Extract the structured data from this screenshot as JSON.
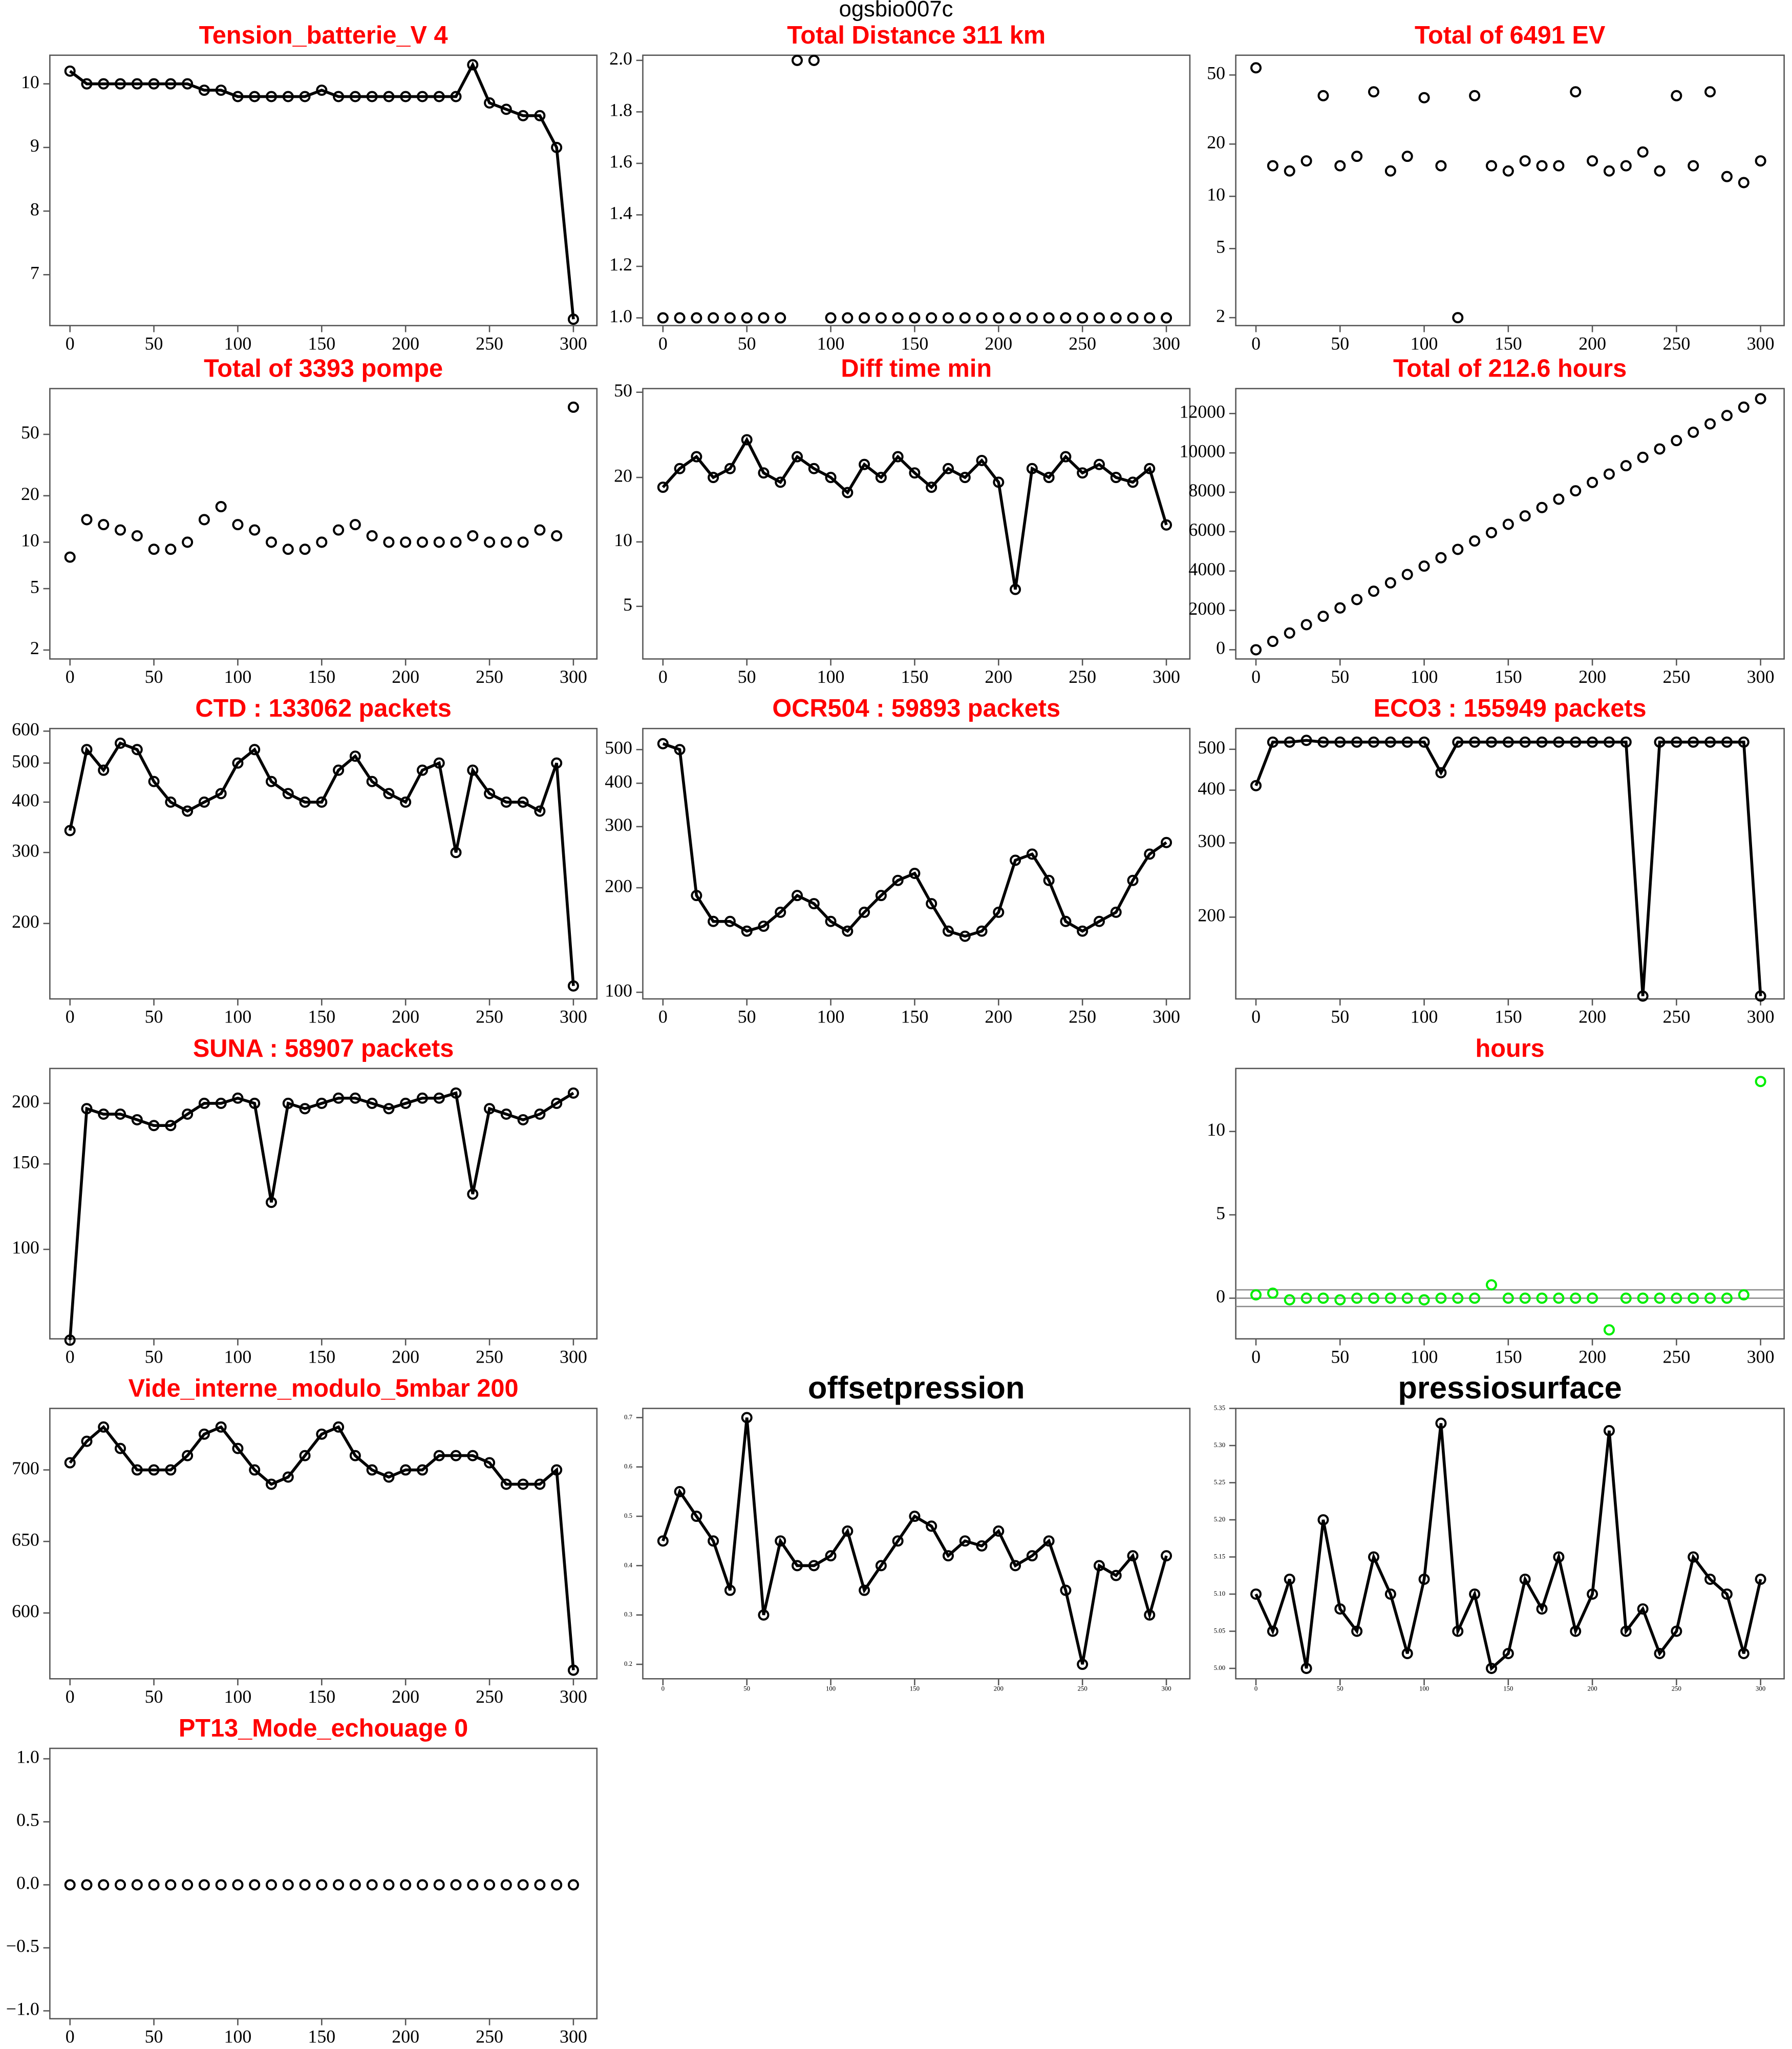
{
  "title": "ogsbio007c",
  "chart_data": [
    {
      "type": "line",
      "title": "Tension_batterie_V 4",
      "title_color": "#ff0000",
      "color": "#000000",
      "x": [
        0,
        10,
        20,
        30,
        40,
        50,
        60,
        70,
        80,
        90,
        100,
        110,
        120,
        130,
        140,
        150,
        160,
        170,
        180,
        190,
        200,
        210,
        220,
        230,
        240,
        250,
        260,
        270,
        280,
        290,
        300
      ],
      "values": [
        10.2,
        10.0,
        10.0,
        10.0,
        10.0,
        10.0,
        10.0,
        10.0,
        9.9,
        9.9,
        9.8,
        9.8,
        9.8,
        9.8,
        9.8,
        9.9,
        9.8,
        9.8,
        9.8,
        9.8,
        9.8,
        9.8,
        9.8,
        9.8,
        10.3,
        9.7,
        9.6,
        9.5,
        9.5,
        9.0,
        6.3
      ],
      "xlim": [
        -12,
        314
      ],
      "xticks": [
        0,
        50,
        100,
        150,
        200,
        250,
        300
      ],
      "ylim": [
        6.2,
        10.45
      ],
      "yticks": [
        7,
        8,
        9,
        10
      ],
      "log_y": false
    },
    {
      "type": "scatter",
      "title": "Total Distance  311  km",
      "title_color": "#ff0000",
      "color": "#000000",
      "x": [
        0,
        10,
        20,
        30,
        40,
        50,
        60,
        70,
        80,
        90,
        100,
        110,
        120,
        130,
        140,
        150,
        160,
        170,
        180,
        190,
        200,
        210,
        220,
        230,
        240,
        250,
        260,
        270,
        280,
        290,
        300
      ],
      "values": [
        1,
        1,
        1,
        1,
        1,
        1,
        1,
        1,
        2,
        2,
        1,
        1,
        1,
        1,
        1,
        1,
        1,
        1,
        1,
        1,
        1,
        1,
        1,
        1,
        1,
        1,
        1,
        1,
        1,
        1,
        1
      ],
      "xlim": [
        -12,
        314
      ],
      "xticks": [
        0,
        50,
        100,
        150,
        200,
        250,
        300
      ],
      "ylim": [
        0.97,
        2.02
      ],
      "yticks": [
        {
          "value": 1,
          "label": "1.0"
        },
        1.2,
        1.4,
        1.6,
        1.8,
        {
          "value": 2,
          "label": "2.0"
        }
      ],
      "log_y": false
    },
    {
      "type": "scatter",
      "title": "Total of  6491  EV",
      "title_color": "#ff0000",
      "color": "#000000",
      "x": [
        0,
        10,
        20,
        30,
        40,
        50,
        60,
        70,
        80,
        90,
        100,
        110,
        120,
        130,
        140,
        150,
        160,
        170,
        180,
        190,
        200,
        210,
        220,
        230,
        240,
        250,
        260,
        270,
        280,
        290,
        300
      ],
      "values": [
        55,
        15,
        14,
        16,
        38,
        15,
        17,
        40,
        14,
        17,
        37,
        15,
        2,
        38,
        15,
        14,
        16,
        15,
        15,
        40,
        16,
        14,
        15,
        18,
        14,
        38,
        15,
        40,
        13,
        12,
        16
      ],
      "xlim": [
        -12,
        314
      ],
      "xticks": [
        0,
        50,
        100,
        150,
        200,
        250,
        300
      ],
      "ylim": [
        1.8,
        65
      ],
      "yticks": [
        2,
        5,
        10,
        20,
        50
      ],
      "log_y": true
    },
    {
      "type": "scatter",
      "title": "Total of  3393  pompe",
      "title_color": "#ff0000",
      "color": "#000000",
      "x": [
        0,
        10,
        20,
        30,
        40,
        50,
        60,
        70,
        80,
        90,
        100,
        110,
        120,
        130,
        140,
        150,
        160,
        170,
        180,
        190,
        200,
        210,
        220,
        230,
        240,
        250,
        260,
        270,
        280,
        290,
        300
      ],
      "values": [
        8,
        14,
        13,
        12,
        11,
        9,
        9,
        10,
        14,
        17,
        13,
        12,
        10,
        9,
        9,
        10,
        12,
        13,
        11,
        10,
        10,
        10,
        10,
        10,
        11,
        10,
        10,
        10,
        12,
        11,
        75
      ],
      "xlim": [
        -12,
        314
      ],
      "xticks": [
        0,
        50,
        100,
        150,
        200,
        250,
        300
      ],
      "ylim": [
        1.75,
        99
      ],
      "yticks": [
        2,
        5,
        10,
        20,
        50
      ],
      "log_y": true
    },
    {
      "type": "line",
      "title": "Diff time min",
      "title_color": "#ff0000",
      "color": "#000000",
      "x": [
        0,
        10,
        20,
        30,
        40,
        50,
        60,
        70,
        80,
        90,
        100,
        110,
        120,
        130,
        140,
        150,
        160,
        170,
        180,
        190,
        200,
        210,
        220,
        230,
        240,
        250,
        260,
        270,
        280,
        290,
        300
      ],
      "values": [
        18,
        22,
        25,
        20,
        22,
        30,
        21,
        19,
        25,
        22,
        20,
        17,
        23,
        20,
        25,
        21,
        18,
        22,
        20,
        24,
        19,
        6,
        22,
        20,
        25,
        21,
        23,
        20,
        19,
        22,
        12
      ],
      "xlim": [
        -12,
        314
      ],
      "xticks": [
        0,
        50,
        100,
        150,
        200,
        250,
        300
      ],
      "ylim": [
        2.84,
        52
      ],
      "yticks": [
        5,
        10,
        20,
        50
      ],
      "log_y": true
    },
    {
      "type": "scatter",
      "title": "Total of  212.6  hours",
      "title_color": "#ff0000",
      "color": "#000000",
      "x": [
        0,
        10,
        20,
        30,
        40,
        50,
        60,
        70,
        80,
        90,
        100,
        110,
        120,
        130,
        140,
        150,
        160,
        170,
        180,
        190,
        200,
        210,
        220,
        230,
        240,
        250,
        260,
        270,
        280,
        290,
        300
      ],
      "values": [
        0,
        425,
        850,
        1275,
        1700,
        2125,
        2550,
        2975,
        3400,
        3825,
        4250,
        4675,
        5100,
        5525,
        5950,
        6375,
        6800,
        7225,
        7650,
        8075,
        8500,
        8925,
        9350,
        9775,
        10200,
        10625,
        11050,
        11475,
        11900,
        12325,
        12750
      ],
      "xlim": [
        -12,
        314
      ],
      "xticks": [
        0,
        50,
        100,
        150,
        200,
        250,
        300
      ],
      "ylim": [
        -467,
        13267
      ],
      "yticks": [
        0,
        2000,
        4000,
        6000,
        8000,
        10000,
        12000
      ],
      "log_y": false
    },
    {
      "type": "line",
      "title": "CTD  : 133062  packets",
      "title_color": "#ff0000",
      "color": "#000000",
      "x": [
        0,
        10,
        20,
        30,
        40,
        50,
        60,
        70,
        80,
        90,
        100,
        110,
        120,
        130,
        140,
        150,
        160,
        170,
        180,
        190,
        200,
        210,
        220,
        230,
        240,
        250,
        260,
        270,
        280,
        290,
        300
      ],
      "values": [
        340,
        540,
        480,
        560,
        540,
        450,
        400,
        380,
        400,
        420,
        500,
        540,
        450,
        420,
        400,
        400,
        480,
        520,
        450,
        420,
        400,
        480,
        500,
        300,
        480,
        420,
        400,
        400,
        380,
        500,
        140
      ],
      "xlim": [
        -12,
        314
      ],
      "xticks": [
        0,
        50,
        100,
        150,
        200,
        250,
        300
      ],
      "ylim": [
        130,
        609
      ],
      "yticks": [
        200,
        300,
        400,
        500,
        600
      ],
      "log_y": true
    },
    {
      "type": "line",
      "title": "OCR504  : 59893  packets",
      "title_color": "#ff0000",
      "color": "#000000",
      "x": [
        0,
        10,
        20,
        30,
        40,
        50,
        60,
        70,
        80,
        90,
        100,
        110,
        120,
        130,
        140,
        150,
        160,
        170,
        180,
        190,
        200,
        210,
        220,
        230,
        240,
        250,
        260,
        270,
        280,
        290,
        300
      ],
      "values": [
        520,
        500,
        190,
        160,
        160,
        150,
        155,
        170,
        190,
        180,
        160,
        150,
        170,
        190,
        210,
        220,
        180,
        150,
        145,
        150,
        170,
        240,
        250,
        210,
        160,
        150,
        160,
        170,
        210,
        250,
        270
      ],
      "xlim": [
        -12,
        314
      ],
      "xticks": [
        0,
        50,
        100,
        150,
        200,
        250,
        300
      ],
      "ylim": [
        95.7,
        575
      ],
      "yticks": [
        100,
        200,
        300,
        400,
        500
      ],
      "log_y": true
    },
    {
      "type": "line",
      "title": "ECO3  : 155949  packets",
      "title_color": "#ff0000",
      "color": "#000000",
      "x": [
        0,
        10,
        20,
        30,
        40,
        50,
        60,
        70,
        80,
        90,
        100,
        110,
        120,
        130,
        140,
        150,
        160,
        170,
        180,
        190,
        200,
        210,
        220,
        230,
        240,
        250,
        260,
        270,
        280,
        290,
        300
      ],
      "values": [
        410,
        520,
        520,
        525,
        520,
        520,
        520,
        520,
        520,
        520,
        520,
        440,
        520,
        520,
        520,
        520,
        520,
        520,
        520,
        520,
        520,
        520,
        520,
        130,
        520,
        520,
        520,
        520,
        520,
        520,
        130
      ],
      "xlim": [
        -12,
        314
      ],
      "xticks": [
        0,
        50,
        100,
        150,
        200,
        250,
        300
      ],
      "ylim": [
        128,
        560
      ],
      "yticks": [
        200,
        300,
        400,
        500
      ],
      "log_y": true
    },
    {
      "type": "line",
      "title": "SUNA  : 58907  packets",
      "title_color": "#ff0000",
      "color": "#000000",
      "x": [
        0,
        10,
        20,
        30,
        40,
        50,
        60,
        70,
        80,
        90,
        100,
        110,
        120,
        130,
        140,
        150,
        160,
        170,
        180,
        190,
        200,
        210,
        220,
        230,
        240,
        250,
        260,
        270,
        280,
        290,
        300
      ],
      "values": [
        65,
        195,
        190,
        190,
        185,
        180,
        180,
        190,
        200,
        200,
        205,
        200,
        125,
        200,
        195,
        200,
        205,
        205,
        200,
        195,
        200,
        205,
        205,
        210,
        130,
        195,
        190,
        185,
        190,
        200,
        210
      ],
      "xlim": [
        -12,
        314
      ],
      "xticks": [
        0,
        50,
        100,
        150,
        200,
        250,
        300
      ],
      "ylim": [
        65.4,
        236
      ],
      "yticks": [
        100,
        150,
        200
      ],
      "log_y": true
    },
    {
      "type": "scatter",
      "title": "hours",
      "title_color": "#ff0000",
      "color": "#00ee00",
      "x": [
        0,
        10,
        20,
        30,
        40,
        50,
        60,
        70,
        80,
        90,
        100,
        110,
        120,
        130,
        140,
        150,
        160,
        170,
        180,
        190,
        200,
        210,
        220,
        230,
        240,
        250,
        260,
        270,
        280,
        290,
        300
      ],
      "values": [
        0.2,
        0.3,
        -0.1,
        0,
        0,
        -0.1,
        0,
        0,
        0,
        0,
        -0.1,
        0,
        0,
        0,
        0.8,
        0,
        0,
        0,
        0,
        0,
        0,
        -1.9,
        0,
        0,
        0,
        0,
        0,
        0,
        0,
        0.2,
        13
      ],
      "xlim": [
        -12,
        314
      ],
      "xticks": [
        0,
        50,
        100,
        150,
        200,
        250,
        300
      ],
      "ylim": [
        -2.44,
        13.78
      ],
      "yticks": [
        0,
        5,
        10
      ],
      "log_y": false,
      "hlines": [
        0.5,
        0,
        -0.5
      ]
    },
    {
      "type": "line",
      "title": "Vide_interne_modulo_5mbar 200",
      "title_color": "#ff0000",
      "color": "#000000",
      "x": [
        0,
        10,
        20,
        30,
        40,
        50,
        60,
        70,
        80,
        90,
        100,
        110,
        120,
        130,
        140,
        150,
        160,
        170,
        180,
        190,
        200,
        210,
        220,
        230,
        240,
        250,
        260,
        270,
        280,
        290,
        300
      ],
      "values": [
        705,
        720,
        730,
        715,
        700,
        700,
        700,
        710,
        725,
        730,
        715,
        700,
        690,
        695,
        710,
        725,
        730,
        710,
        700,
        695,
        700,
        700,
        710,
        710,
        710,
        705,
        690,
        690,
        690,
        700,
        560
      ],
      "xlim": [
        -12,
        314
      ],
      "xticks": [
        0,
        50,
        100,
        150,
        200,
        250,
        300
      ],
      "ylim": [
        554,
        743
      ],
      "yticks": [
        600,
        650,
        700
      ],
      "log_y": false
    },
    {
      "type": "line",
      "title": "offsetpression",
      "title_color": "#000000",
      "color": "#000000",
      "x": [
        0,
        10,
        20,
        30,
        40,
        50,
        60,
        70,
        80,
        90,
        100,
        110,
        120,
        130,
        140,
        150,
        160,
        170,
        180,
        190,
        200,
        210,
        220,
        230,
        240,
        250,
        260,
        270,
        280,
        290,
        300
      ],
      "values": [
        0.45,
        0.55,
        0.5,
        0.45,
        0.35,
        0.7,
        0.3,
        0.45,
        0.4,
        0.4,
        0.42,
        0.47,
        0.35,
        0.4,
        0.45,
        0.5,
        0.48,
        0.42,
        0.45,
        0.44,
        0.47,
        0.4,
        0.42,
        0.45,
        0.35,
        0.2,
        0.4,
        0.38,
        0.42,
        0.3,
        0.42
      ],
      "xlim": [
        -12,
        314
      ],
      "xticks": [
        0,
        50,
        100,
        150,
        200,
        250,
        300
      ],
      "ylim": [
        0.1707,
        0.7186
      ],
      "yticks": [
        0.2,
        0.3,
        0.4,
        0.5,
        0.6,
        0.7
      ],
      "log_y": false
    },
    {
      "type": "line",
      "title": "pressiosurface",
      "title_color": "#000000",
      "color": "#000000",
      "x": [
        0,
        10,
        20,
        30,
        40,
        50,
        60,
        70,
        80,
        90,
        100,
        110,
        120,
        130,
        140,
        150,
        160,
        170,
        180,
        190,
        200,
        210,
        220,
        230,
        240,
        250,
        260,
        270,
        280,
        290,
        300
      ],
      "values": [
        5.1,
        5.05,
        5.12,
        5.0,
        5.2,
        5.08,
        5.05,
        5.15,
        5.1,
        5.02,
        5.12,
        5.33,
        5.05,
        5.1,
        5.0,
        5.02,
        5.12,
        5.08,
        5.15,
        5.05,
        5.1,
        5.32,
        5.05,
        5.08,
        5.02,
        5.05,
        5.15,
        5.12,
        5.1,
        5.02,
        5.12
      ],
      "xlim": [
        -12,
        314
      ],
      "xticks": [
        0,
        50,
        100,
        150,
        200,
        250,
        300
      ],
      "ylim": [
        4.986,
        5.35
      ],
      "yticks": [
        {
          "value": 5,
          "label": "5.00"
        },
        5.05,
        {
          "value": 5.1,
          "label": "5.10"
        },
        5.15,
        {
          "value": 5.2,
          "label": "5.20"
        },
        5.25,
        {
          "value": 5.3,
          "label": "5.30"
        },
        5.35
      ],
      "log_y": false
    },
    {
      "type": "scatter",
      "title": "PT13_Mode_echouage  0",
      "title_color": "#ff0000",
      "color": "#000000",
      "x": [
        0,
        10,
        20,
        30,
        40,
        50,
        60,
        70,
        80,
        90,
        100,
        110,
        120,
        130,
        140,
        150,
        160,
        170,
        180,
        190,
        200,
        210,
        220,
        230,
        240,
        250,
        260,
        270,
        280,
        290,
        300
      ],
      "values": [
        0,
        0,
        0,
        0,
        0,
        0,
        0,
        0,
        0,
        0,
        0,
        0,
        0,
        0,
        0,
        0,
        0,
        0,
        0,
        0,
        0,
        0,
        0,
        0,
        0,
        0,
        0,
        0,
        0,
        0,
        0
      ],
      "xlim": [
        -12,
        314
      ],
      "xticks": [
        0,
        50,
        100,
        150,
        200,
        250,
        300
      ],
      "ylim": [
        -1.0625,
        1.083
      ],
      "yticks": [
        {
          "value": -1,
          "label": "−1.0"
        },
        {
          "value": -0.5,
          "label": "−0.5"
        },
        {
          "value": 0,
          "label": "0.0"
        },
        0.5,
        {
          "value": 1,
          "label": "1.0"
        }
      ],
      "log_y": false
    }
  ]
}
